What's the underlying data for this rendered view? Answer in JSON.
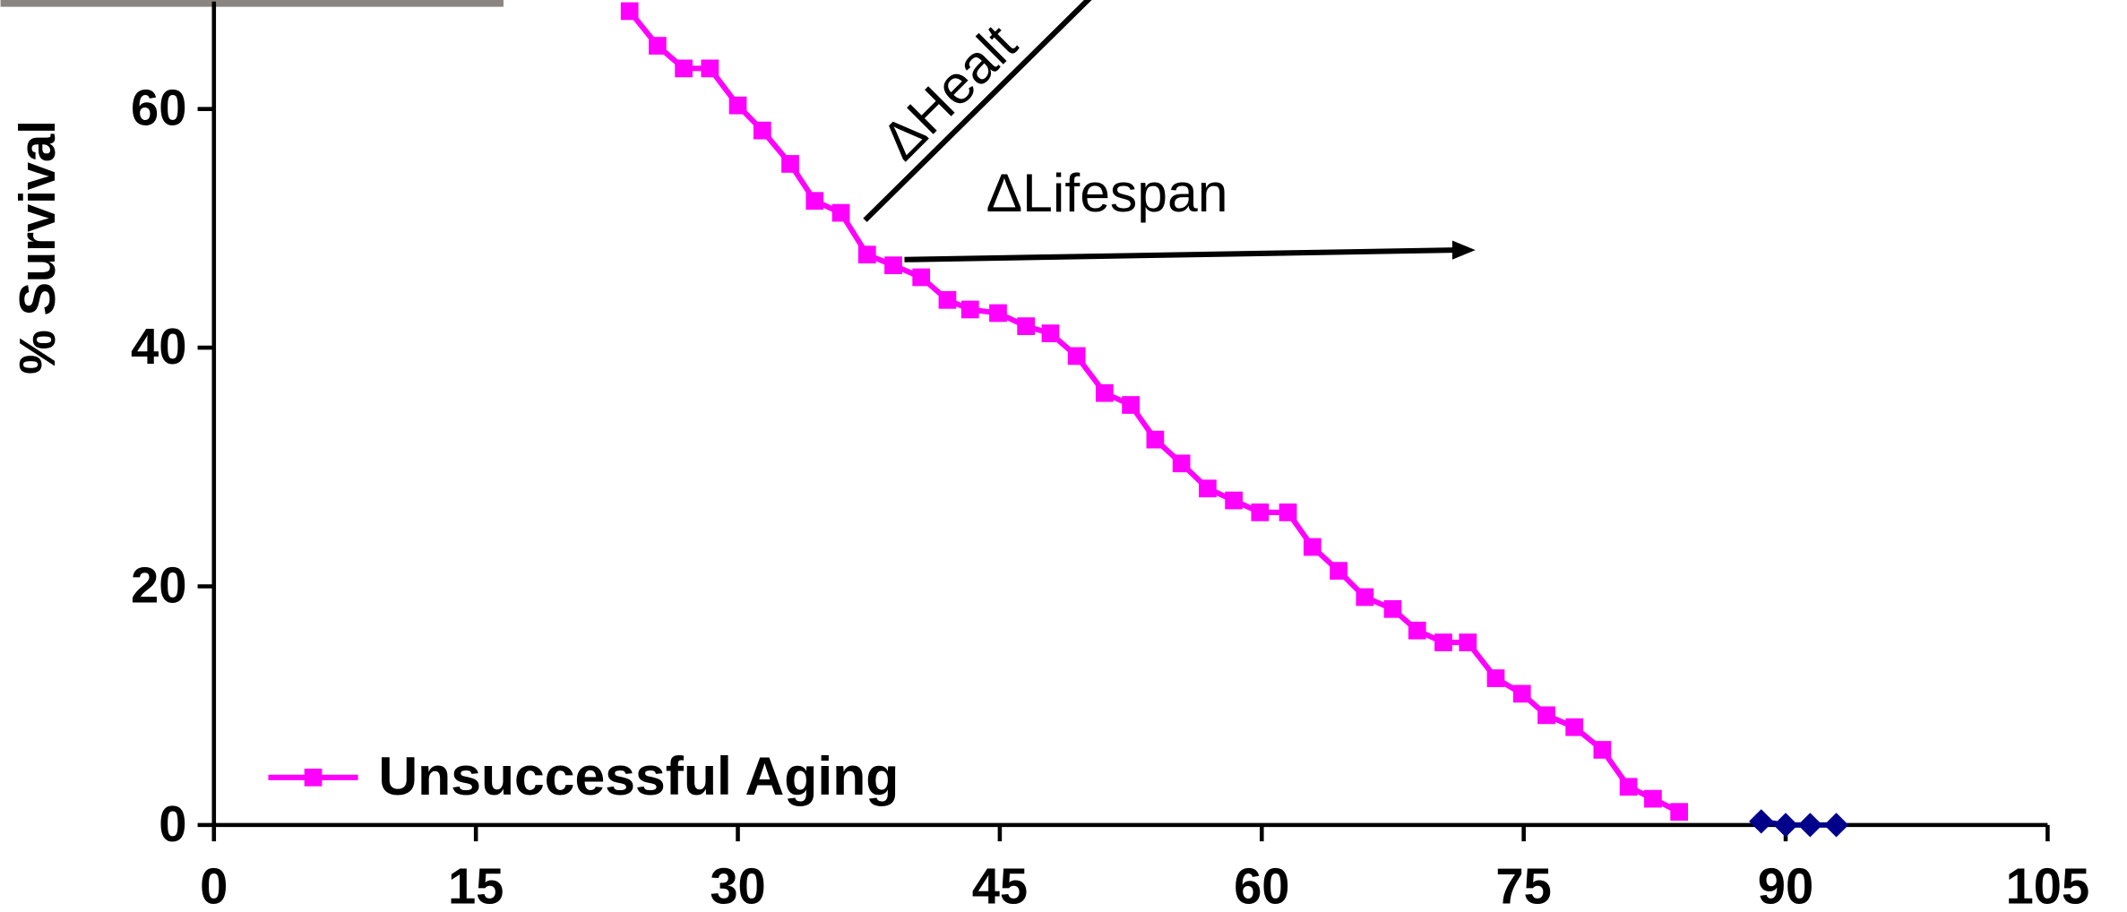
{
  "chart_data": {
    "type": "line",
    "y_label": "% Survival",
    "annotations": [
      "ΔHealt",
      "ΔLifespan"
    ],
    "xlim": [
      0,
      105
    ],
    "xticks": [
      0,
      15,
      30,
      45,
      60,
      75,
      90,
      105
    ],
    "ylim": [
      0,
      69
    ],
    "yticks": [
      0,
      20,
      40,
      60
    ],
    "legend_position": "lower left",
    "series": [
      {
        "name": "Unsuccessful Aging",
        "color": "#ff00ff",
        "marker": "square",
        "x": [
          23.8,
          25.4,
          26.9,
          28.4,
          30.0,
          31.4,
          33.0,
          34.4,
          35.9,
          37.4,
          38.9,
          40.5,
          42.0,
          43.3,
          44.9,
          46.5,
          47.9,
          49.4,
          51.0,
          52.5,
          53.9,
          55.4,
          56.9,
          58.4,
          59.9,
          61.5,
          62.9,
          64.4,
          65.9,
          67.5,
          68.9,
          70.4,
          71.8,
          73.4,
          74.9,
          76.3,
          77.9,
          79.5,
          81.0,
          82.4,
          83.9
        ],
        "values": [
          68.2,
          65.3,
          63.4,
          63.4,
          60.3,
          58.2,
          55.4,
          52.3,
          51.3,
          47.8,
          46.9,
          45.9,
          44.0,
          43.2,
          42.9,
          41.8,
          41.2,
          39.3,
          36.2,
          35.2,
          32.3,
          30.3,
          28.2,
          27.2,
          26.2,
          26.2,
          23.3,
          21.3,
          19.1,
          18.1,
          16.3,
          15.3,
          15.3,
          12.3,
          11.0,
          9.2,
          8.2,
          6.3,
          3.2,
          2.2,
          1.1
        ]
      },
      {
        "color": "#00008b",
        "marker": "diamond",
        "x": [
          88.6,
          90.0,
          91.4,
          92.9
        ],
        "values": [
          0.3,
          0,
          0,
          0
        ]
      }
    ]
  }
}
